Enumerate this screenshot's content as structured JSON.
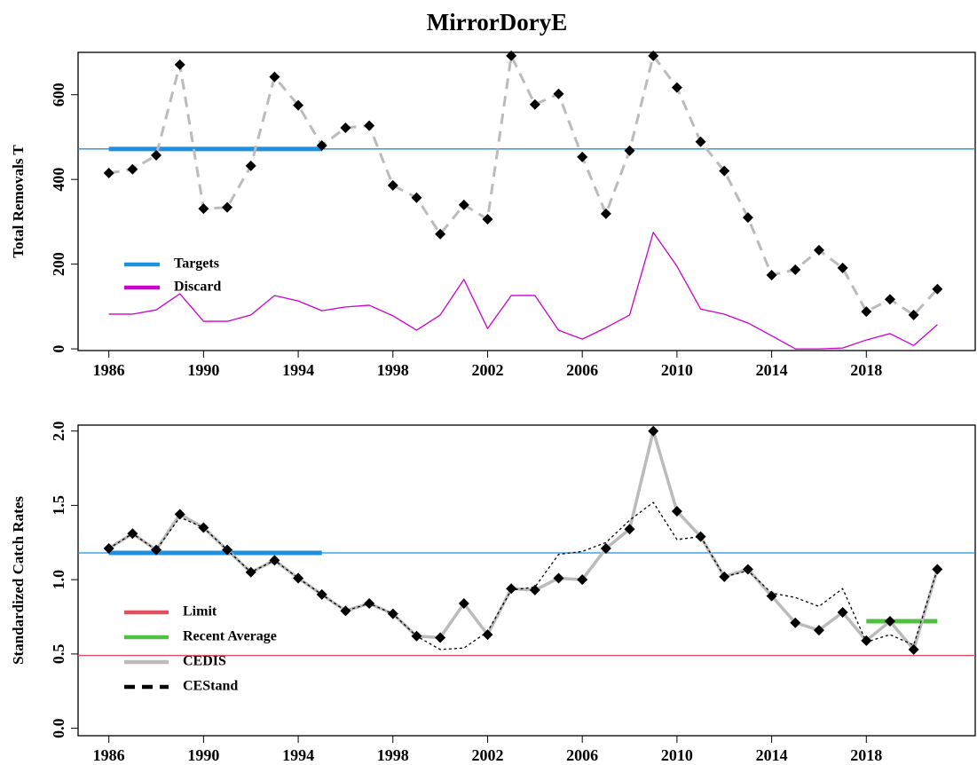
{
  "chart_data": [
    {
      "type": "line",
      "title": "MirrorDoryE",
      "ylabel": "Total Removals T",
      "xlim": [
        1984.7,
        2022.6
      ],
      "xticks": [
        1986,
        1990,
        1994,
        1998,
        2002,
        2006,
        2010,
        2014,
        2018
      ],
      "ylim": [
        -4,
        700
      ],
      "yticks": [
        0,
        200,
        400,
        600
      ],
      "x": [
        1986,
        1987,
        1988,
        1989,
        1990,
        1991,
        1992,
        1993,
        1994,
        1995,
        1996,
        1997,
        1998,
        1999,
        2000,
        2001,
        2002,
        2003,
        2004,
        2005,
        2006,
        2007,
        2008,
        2009,
        2010,
        2011,
        2012,
        2013,
        2014,
        2015,
        2016,
        2017,
        2018,
        2019,
        2020,
        2021
      ],
      "lines": [
        {
          "name": "Targets",
          "value": 472,
          "color": "#1e90e0",
          "full": true,
          "span": [
            1986,
            1995
          ]
        }
      ],
      "series": [
        {
          "color": "#bbbbbb",
          "style": "dashed",
          "markers": true,
          "values": [
            415,
            424,
            457,
            671,
            331,
            334,
            432,
            642,
            575,
            480,
            522,
            527,
            386,
            357,
            271,
            340,
            306,
            692,
            577,
            602,
            453,
            319,
            468,
            692,
            617,
            489,
            420,
            310,
            174,
            187,
            233,
            191,
            88,
            117,
            80,
            141
          ]
        },
        {
          "name": "Discard",
          "color": "#cc00cc",
          "style": "solid",
          "markers": false,
          "values": [
            82,
            82,
            92,
            130,
            65,
            65,
            80,
            126,
            113,
            90,
            99,
            103,
            78,
            44,
            80,
            164,
            48,
            126,
            126,
            44,
            23,
            50,
            80,
            275,
            195,
            94,
            82,
            61,
            31,
            0,
            0,
            2,
            21,
            36,
            8,
            57
          ]
        }
      ]
    },
    {
      "type": "line",
      "ylabel": "Standardized Catch Rates",
      "xlim": [
        1984.7,
        2022.6
      ],
      "xticks": [
        1986,
        1990,
        1994,
        1998,
        2002,
        2006,
        2010,
        2014,
        2018
      ],
      "ylim": [
        -0.05,
        2.04
      ],
      "yticks": [
        {
          "value": 0,
          "label": "0.0"
        },
        0.5,
        {
          "value": 1,
          "label": "1.0"
        },
        1.5,
        {
          "value": 2,
          "label": "2.0"
        }
      ],
      "x": [
        1986,
        1987,
        1988,
        1989,
        1990,
        1991,
        1992,
        1993,
        1994,
        1995,
        1996,
        1997,
        1998,
        1999,
        2000,
        2001,
        2002,
        2003,
        2004,
        2005,
        2006,
        2007,
        2008,
        2009,
        2010,
        2011,
        2012,
        2013,
        2014,
        2015,
        2016,
        2017,
        2018,
        2019,
        2020,
        2021
      ],
      "lines": [
        {
          "value": 1.18,
          "color": "#1e90e0",
          "full": true,
          "span": [
            1986,
            1995
          ]
        },
        {
          "name": "Limit",
          "value": 0.49,
          "color": "#e05060",
          "full": true
        },
        {
          "name": "Recent Average",
          "value": 0.72,
          "color": "#50c040",
          "full": false,
          "span": [
            2018,
            2021
          ]
        }
      ],
      "series": [
        {
          "name": "CEDIS",
          "color": "#bbbbbb",
          "style": "thick",
          "markers": true,
          "values": [
            1.21,
            1.31,
            1.2,
            1.44,
            1.35,
            1.2,
            1.05,
            1.13,
            1.01,
            0.9,
            0.79,
            0.84,
            0.77,
            0.62,
            0.61,
            0.84,
            0.63,
            0.94,
            0.93,
            1.01,
            1.0,
            1.21,
            1.34,
            2.0,
            1.46,
            1.29,
            1.02,
            1.07,
            0.89,
            0.71,
            0.66,
            0.78,
            0.59,
            0.72,
            0.53,
            1.07
          ]
        },
        {
          "name": "CEStand",
          "color": "#000000",
          "style": "dotted",
          "markers": false,
          "values": [
            1.21,
            1.31,
            1.2,
            1.42,
            1.35,
            1.2,
            1.05,
            1.13,
            1.01,
            0.9,
            0.79,
            0.84,
            0.77,
            0.62,
            0.53,
            0.54,
            0.65,
            0.93,
            0.95,
            1.17,
            1.19,
            1.25,
            1.4,
            1.52,
            1.27,
            1.29,
            1.02,
            1.06,
            0.91,
            0.88,
            0.82,
            0.94,
            0.58,
            0.63,
            0.56,
            1.07
          ]
        }
      ]
    }
  ]
}
